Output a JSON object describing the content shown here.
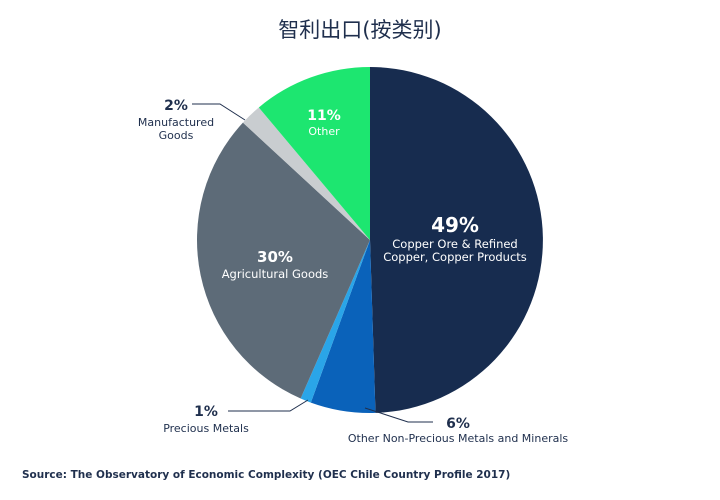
{
  "chart_data": {
    "type": "pie",
    "title": "智利出口(按类别)",
    "slices": [
      {
        "name": "Copper Ore & Refined Copper, Copper Products",
        "value": 49,
        "label": "49%",
        "color": "#172c4f",
        "lines": [
          "Copper Ore & Refined",
          "Copper, Copper Products"
        ]
      },
      {
        "name": "Other Non-Precious Metals and Minerals",
        "value": 6,
        "label": "6%",
        "color": "#0a62ba",
        "lines": [
          "Other Non-Precious Metals and Minerals"
        ]
      },
      {
        "name": "Precious Metals",
        "value": 1,
        "label": "1%",
        "color": "#2aa5e8",
        "lines": [
          "Precious Metals"
        ]
      },
      {
        "name": "Agricultural Goods",
        "value": 30,
        "label": "30%",
        "color": "#5d6b78",
        "lines": [
          "Agricultural Goods"
        ]
      },
      {
        "name": "Manufactured Goods",
        "value": 2,
        "label": "2%",
        "color": "#c9cdd0",
        "lines": [
          "Manufactured",
          "Goods"
        ]
      },
      {
        "name": "Other",
        "value": 11,
        "label": "11%",
        "color": "#1de670",
        "lines": [
          "Other"
        ]
      }
    ]
  },
  "source": "Source: The Observatory of Economic Complexity (OEC Chile Country Profile 2017)"
}
